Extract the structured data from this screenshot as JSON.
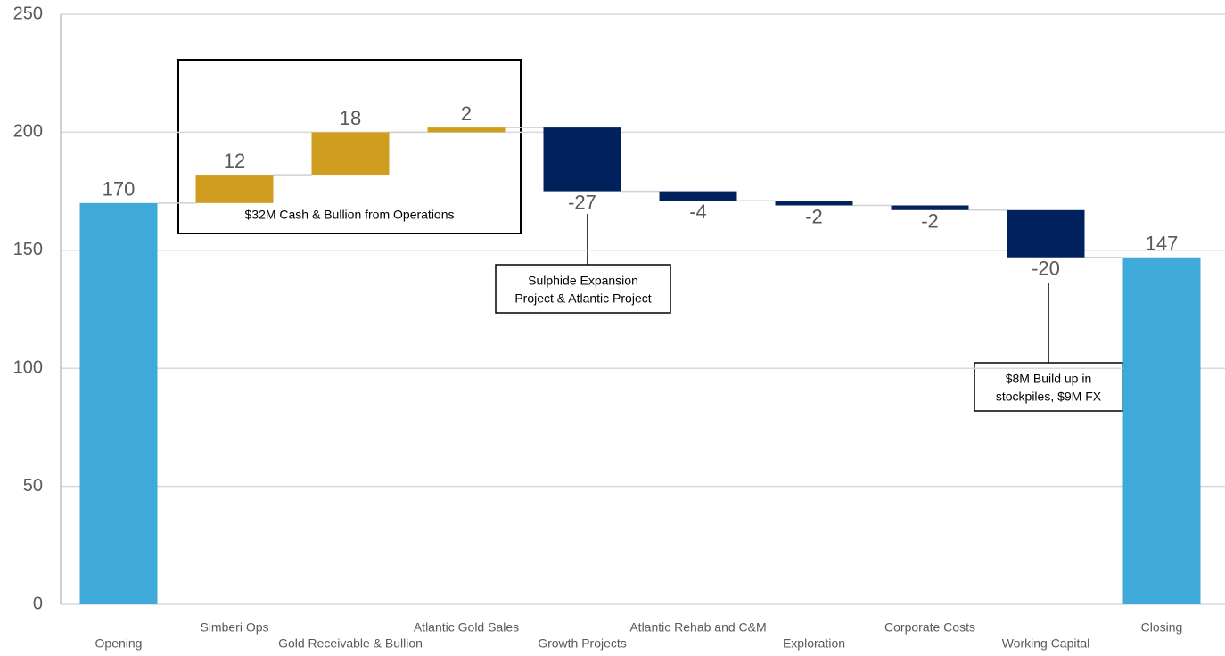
{
  "chart_data": {
    "type": "waterfall",
    "categories": [
      "Opening",
      "Simberi Ops",
      "Gold Receivable & Bullion",
      "Atlantic Gold Sales",
      "Growth Projects",
      "Atlantic Rehab and C&M",
      "Exploration",
      "Corporate Costs",
      "Working Capital",
      "Closing"
    ],
    "values": [
      170,
      12,
      18,
      2,
      -27,
      -4,
      -2,
      -2,
      -20,
      147
    ],
    "measure": [
      "absolute",
      "relative",
      "relative",
      "relative",
      "relative",
      "relative",
      "relative",
      "relative",
      "relative",
      "absolute"
    ],
    "colors": [
      "#3fa9da",
      "#d09e1e",
      "#d09e1e",
      "#d09e1e",
      "#00215b",
      "#00215b",
      "#00215b",
      "#00215b",
      "#00215b",
      "#3fa9da"
    ],
    "ylim": [
      0,
      250
    ],
    "yticks": [
      0,
      50,
      100,
      150,
      200,
      250
    ],
    "grid": true,
    "annotations": [
      {
        "lines": [
          "$32M Cash & Bullion from Operations"
        ]
      },
      {
        "lines": [
          "Sulphide Expansion",
          "Project & Atlantic Project"
        ]
      },
      {
        "lines": [
          "$8M Build up in",
          "stockpiles, $9M FX"
        ]
      }
    ]
  }
}
